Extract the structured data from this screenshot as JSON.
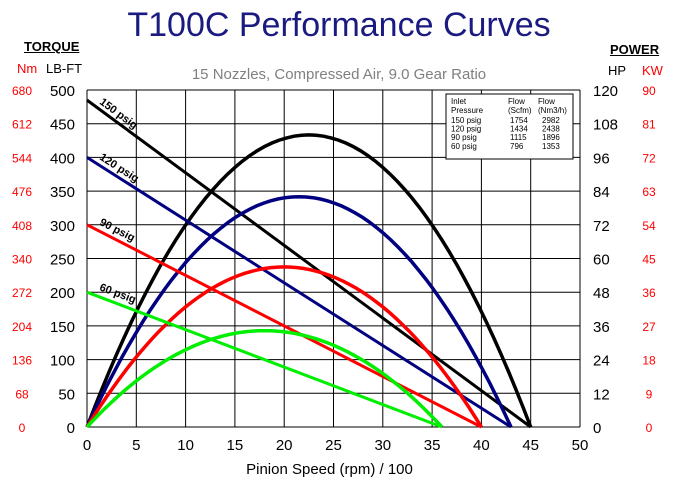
{
  "title": "T100C Performance Curves",
  "subtitle": "15 Nozzles, Compressed Air, 9.0 Gear Ratio",
  "torque_header": "TORQUE",
  "torque_nm_label": "Nm",
  "torque_lbft_label": "LB-FT",
  "power_header": "POWER",
  "power_hp_label": "HP",
  "power_kw_label": "KW",
  "colors": {
    "title": "#1a1a80",
    "secondary_axis": "#ff0000",
    "p150": "#000000",
    "p120": "#000080",
    "p90": "#ff0000",
    "p60": "#00ee00"
  },
  "flow_table": {
    "headers": [
      [
        "Inlet",
        "Pressure"
      ],
      [
        "Flow",
        "(Scfm)"
      ],
      [
        "Flow",
        "(Nm3/h)"
      ]
    ],
    "rows": [
      [
        "150 psig",
        "1754",
        "2982"
      ],
      [
        "120 psig",
        "1434",
        "2438"
      ],
      [
        "90  psig",
        "1115",
        "1896"
      ],
      [
        "60  psig",
        "796",
        "1353"
      ]
    ]
  },
  "chart_data": {
    "type": "line",
    "title": "T100C Performance Curves",
    "subtitle": "15 Nozzles, Compressed Air, 9.0 Gear Ratio",
    "xlabel": "Pinion Speed (rpm) / 100",
    "xlim": [
      0,
      50
    ],
    "x_ticks": [
      "0",
      "5",
      "10",
      "15",
      "20",
      "25",
      "30",
      "35",
      "40",
      "45",
      "50"
    ],
    "ylim_torque_lbft": [
      0,
      500
    ],
    "y_ticks_lbft": [
      "0",
      "50",
      "100",
      "150",
      "200",
      "250",
      "300",
      "350",
      "400",
      "450",
      "500"
    ],
    "y_ticks_nm": [
      "0",
      "68",
      "136",
      "204",
      "272",
      "340",
      "408",
      "476",
      "544",
      "612",
      "680"
    ],
    "ylim_power_hp": [
      0,
      120
    ],
    "y_ticks_hp": [
      "0",
      "12",
      "24",
      "36",
      "48",
      "60",
      "72",
      "84",
      "96",
      "108",
      "120"
    ],
    "y_ticks_kw": [
      "0",
      "9",
      "18",
      "27",
      "36",
      "45",
      "54",
      "63",
      "72",
      "81",
      "90"
    ],
    "grid": true,
    "series": [
      {
        "name": "150 psig",
        "stall_torque_lbft": 485,
        "free_speed": 45,
        "peak_power_hp": 104
      },
      {
        "name": "120 psig",
        "stall_torque_lbft": 400,
        "free_speed": 43,
        "peak_power_hp": 82
      },
      {
        "name": "90 psig",
        "stall_torque_lbft": 300,
        "free_speed": 40,
        "peak_power_hp": 57
      },
      {
        "name": "60 psig",
        "stall_torque_lbft": 200,
        "free_speed": 36,
        "peak_power_hp": 34.3
      }
    ]
  }
}
